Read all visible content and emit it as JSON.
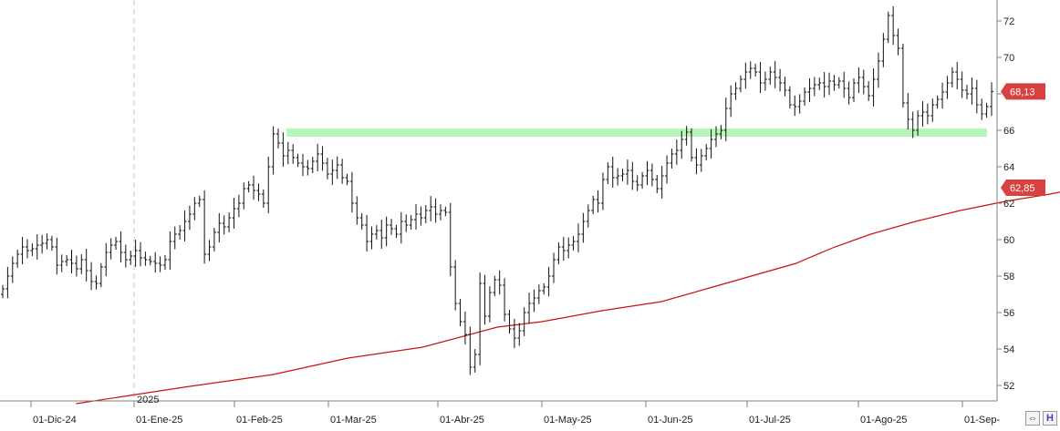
{
  "chart_data": {
    "type": "ohlc",
    "year_marker": "2025",
    "x_tick_labels": [
      "01-Dic-24",
      "01-Ene-25",
      "01-Feb-25",
      "01-Mar-25",
      "01-Abr-25",
      "01-May-25",
      "01-Jun-25",
      "01-Jul-25",
      "01-Ago-25",
      "01-Sep-"
    ],
    "y_tick_labels": [
      "52",
      "54",
      "56",
      "58",
      "60",
      "62",
      "64",
      "66",
      "68",
      "70",
      "72"
    ],
    "ylim": [
      51,
      73
    ],
    "price_tags": [
      {
        "label": "68,13",
        "value": 68.13,
        "color": "#d94040"
      },
      {
        "label": "62,85",
        "value": 62.85,
        "color": "#d94040"
      }
    ],
    "support_level": {
      "value": 65.85,
      "color": "#b8f5b8"
    },
    "moving_average": {
      "color": "#cc1111",
      "points": [
        [
          -6,
          51.0
        ],
        [
          10,
          51.4
        ],
        [
          30,
          51.9
        ],
        [
          60,
          52.6
        ],
        [
          85,
          53.5
        ],
        [
          110,
          54.1
        ],
        [
          135,
          55.2
        ],
        [
          150,
          55.5
        ],
        [
          170,
          56.1
        ],
        [
          190,
          56.6
        ],
        [
          205,
          57.3
        ],
        [
          220,
          58.0
        ],
        [
          235,
          58.7
        ],
        [
          248,
          59.6
        ],
        [
          260,
          60.3
        ],
        [
          275,
          61.0
        ],
        [
          290,
          61.6
        ],
        [
          305,
          62.1
        ],
        [
          320,
          62.5
        ],
        [
          331,
          62.85
        ]
      ]
    },
    "bars_daily_close": [
      57.3,
      58.0,
      58.7,
      59.2,
      59.6,
      59.4,
      59.5,
      59.7,
      59.8,
      60.0,
      59.6,
      58.6,
      58.8,
      58.9,
      58.7,
      58.4,
      58.9,
      58.3,
      57.7,
      57.6,
      58.5,
      59.3,
      59.7,
      59.9,
      59.3,
      58.9,
      59.1,
      59.4,
      59.0,
      58.9,
      58.8,
      58.7,
      58.6,
      58.9,
      59.9,
      60.3,
      60.5,
      61.0,
      61.4,
      62.0,
      62.2,
      59.2,
      59.6,
      60.4,
      60.9,
      60.7,
      61.2,
      61.7,
      62.0,
      62.8,
      63.0,
      62.7,
      62.5,
      62.0,
      64.0,
      65.8,
      65.3,
      64.6,
      64.9,
      64.5,
      64.2,
      64.0,
      63.9,
      64.3,
      64.7,
      64.2,
      63.6,
      63.8,
      64.1,
      63.4,
      63.2,
      62.0,
      61.2,
      60.8,
      59.9,
      60.3,
      60.5,
      60.1,
      60.8,
      60.6,
      60.3,
      61.0,
      60.8,
      61.1,
      61.4,
      61.2,
      61.6,
      61.8,
      61.4,
      61.6,
      61.5,
      58.5,
      56.5,
      55.5,
      54.8,
      53.0,
      53.7,
      57.6,
      55.8,
      57.1,
      57.8,
      57.5,
      55.9,
      55.1,
      54.6,
      55.0,
      56.0,
      56.5,
      56.8,
      57.2,
      57.4,
      58.0,
      58.9,
      59.6,
      59.4,
      59.7,
      59.9,
      60.3,
      61.0,
      61.6,
      62.2,
      62.0,
      63.3,
      64.0,
      63.4,
      63.5,
      63.6,
      63.8,
      63.2,
      63.0,
      63.5,
      63.8,
      63.3,
      62.8,
      63.5,
      64.2,
      64.7,
      64.9,
      65.5,
      65.9,
      64.5,
      64.1,
      64.6,
      65.0,
      65.5,
      65.8,
      66.0,
      67.2,
      68.0,
      68.3,
      68.8,
      69.2,
      69.4,
      69.2,
      68.6,
      68.8,
      69.2,
      68.9,
      68.6,
      68.2,
      67.4,
      67.3,
      67.6,
      68.1,
      68.3,
      68.5,
      68.6,
      68.4,
      68.7,
      68.5,
      68.7,
      68.3,
      67.8,
      68.6,
      68.9,
      68.4,
      67.9,
      68.8,
      69.8,
      71.0,
      72.3,
      71.2,
      70.5,
      67.5,
      66.6,
      66.0,
      66.8,
      67.0,
      66.8,
      67.4,
      67.7,
      68.1,
      68.6,
      69.2,
      68.8,
      68.2,
      68.0,
      68.3,
      67.4,
      66.9,
      67.3,
      68.13
    ]
  },
  "corner_buttons": [
    {
      "name": "chart-settings-icon",
      "glyph": "⇔"
    },
    {
      "name": "chart-h-icon",
      "glyph": "H"
    }
  ]
}
